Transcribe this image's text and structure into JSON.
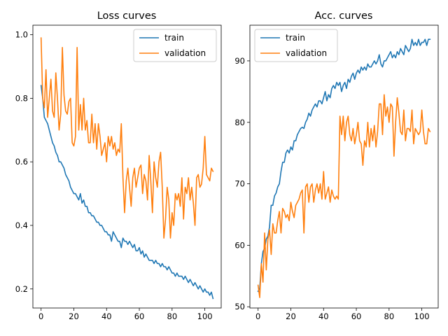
{
  "chart_data": [
    {
      "type": "line",
      "title": "Loss curves",
      "xlabel": "",
      "ylabel": "",
      "xlim": [
        -5,
        110
      ],
      "ylim": [
        0.14,
        1.03
      ],
      "xticks": [
        0,
        20,
        40,
        60,
        80,
        100
      ],
      "yticks": [
        0.2,
        0.4,
        0.6,
        0.8,
        1.0
      ],
      "xtick_labels": [
        "0",
        "20",
        "40",
        "60",
        "80",
        "100"
      ],
      "ytick_labels": [
        "0.2",
        "0.4",
        "0.6",
        "0.8",
        "1.0"
      ],
      "legend_position": "upper-right",
      "grid": false,
      "series": [
        {
          "name": "train",
          "color": "#1f77b4",
          "x": [
            0,
            1,
            2,
            3,
            4,
            5,
            6,
            7,
            8,
            9,
            10,
            11,
            12,
            13,
            14,
            15,
            16,
            17,
            18,
            19,
            20,
            21,
            22,
            23,
            24,
            25,
            26,
            27,
            28,
            29,
            30,
            31,
            32,
            33,
            34,
            35,
            36,
            37,
            38,
            39,
            40,
            41,
            42,
            43,
            44,
            45,
            46,
            47,
            48,
            49,
            50,
            51,
            52,
            53,
            54,
            55,
            56,
            57,
            58,
            59,
            60,
            61,
            62,
            63,
            64,
            65,
            66,
            67,
            68,
            69,
            70,
            71,
            72,
            73,
            74,
            75,
            76,
            77,
            78,
            79,
            80,
            81,
            82,
            83,
            84,
            85,
            86,
            87,
            88,
            89,
            90,
            91,
            92,
            93,
            94,
            95,
            96,
            97,
            98,
            99,
            100,
            101,
            102,
            103,
            104,
            105
          ],
          "y": [
            0.84,
            0.8,
            0.74,
            0.73,
            0.72,
            0.7,
            0.68,
            0.66,
            0.65,
            0.63,
            0.62,
            0.6,
            0.6,
            0.59,
            0.58,
            0.56,
            0.55,
            0.54,
            0.52,
            0.51,
            0.5,
            0.5,
            0.49,
            0.48,
            0.5,
            0.47,
            0.48,
            0.46,
            0.46,
            0.44,
            0.44,
            0.43,
            0.43,
            0.42,
            0.41,
            0.41,
            0.4,
            0.4,
            0.39,
            0.38,
            0.38,
            0.37,
            0.37,
            0.35,
            0.38,
            0.37,
            0.36,
            0.35,
            0.35,
            0.33,
            0.36,
            0.35,
            0.35,
            0.34,
            0.35,
            0.34,
            0.33,
            0.34,
            0.32,
            0.32,
            0.33,
            0.31,
            0.32,
            0.3,
            0.31,
            0.3,
            0.29,
            0.29,
            0.29,
            0.28,
            0.29,
            0.28,
            0.28,
            0.27,
            0.28,
            0.27,
            0.27,
            0.26,
            0.27,
            0.26,
            0.25,
            0.25,
            0.24,
            0.25,
            0.24,
            0.24,
            0.24,
            0.23,
            0.24,
            0.23,
            0.22,
            0.23,
            0.22,
            0.21,
            0.22,
            0.21,
            0.2,
            0.21,
            0.2,
            0.19,
            0.2,
            0.19,
            0.19,
            0.18,
            0.19,
            0.17
          ]
        },
        {
          "name": "validation",
          "color": "#ff7f0e",
          "x": [
            0,
            1,
            2,
            3,
            4,
            5,
            6,
            7,
            8,
            9,
            10,
            11,
            12,
            13,
            14,
            15,
            16,
            17,
            18,
            19,
            20,
            21,
            22,
            23,
            24,
            25,
            26,
            27,
            28,
            29,
            30,
            31,
            32,
            33,
            34,
            35,
            36,
            37,
            38,
            39,
            40,
            41,
            42,
            43,
            44,
            45,
            46,
            47,
            48,
            49,
            50,
            51,
            52,
            53,
            54,
            55,
            56,
            57,
            58,
            59,
            60,
            61,
            62,
            63,
            64,
            65,
            66,
            67,
            68,
            69,
            70,
            71,
            72,
            73,
            74,
            75,
            76,
            77,
            78,
            79,
            80,
            81,
            82,
            83,
            84,
            85,
            86,
            87,
            88,
            89,
            90,
            91,
            92,
            93,
            94,
            95,
            96,
            97,
            98,
            99,
            100,
            101,
            102,
            103,
            104,
            105
          ],
          "y": [
            0.99,
            0.8,
            0.77,
            0.89,
            0.74,
            0.8,
            0.86,
            0.76,
            0.74,
            0.88,
            0.8,
            0.7,
            0.75,
            0.96,
            0.81,
            0.76,
            0.75,
            0.79,
            0.8,
            0.66,
            0.65,
            0.68,
            0.96,
            0.7,
            0.78,
            0.7,
            0.8,
            0.7,
            0.73,
            0.66,
            0.66,
            0.75,
            0.66,
            0.72,
            0.64,
            0.72,
            0.68,
            0.62,
            0.64,
            0.66,
            0.6,
            0.68,
            0.65,
            0.68,
            0.64,
            0.66,
            0.62,
            0.64,
            0.63,
            0.72,
            0.55,
            0.44,
            0.54,
            0.58,
            0.52,
            0.46,
            0.55,
            0.58,
            0.52,
            0.55,
            0.58,
            0.59,
            0.5,
            0.56,
            0.54,
            0.48,
            0.62,
            0.54,
            0.44,
            0.6,
            0.55,
            0.52,
            0.6,
            0.63,
            0.52,
            0.36,
            0.42,
            0.52,
            0.48,
            0.36,
            0.44,
            0.4,
            0.5,
            0.48,
            0.5,
            0.46,
            0.55,
            0.42,
            0.52,
            0.5,
            0.55,
            0.48,
            0.52,
            0.47,
            0.4,
            0.55,
            0.56,
            0.52,
            0.53,
            0.58,
            0.68,
            0.56,
            0.55,
            0.54,
            0.58,
            0.57
          ]
        }
      ]
    },
    {
      "type": "line",
      "title": "Acc. curves",
      "xlabel": "",
      "ylabel": "",
      "xlim": [
        -5,
        110
      ],
      "ylim": [
        49.8,
        95.8
      ],
      "xticks": [
        0,
        20,
        40,
        60,
        80,
        100
      ],
      "yticks": [
        50,
        60,
        70,
        80,
        90
      ],
      "xtick_labels": [
        "0",
        "20",
        "40",
        "60",
        "80",
        "100"
      ],
      "ytick_labels": [
        "50",
        "60",
        "70",
        "80",
        "90"
      ],
      "legend_position": "upper-left",
      "grid": false,
      "series": [
        {
          "name": "train",
          "color": "#1f77b4",
          "x": [
            0,
            1,
            2,
            3,
            4,
            5,
            6,
            7,
            8,
            9,
            10,
            11,
            12,
            13,
            14,
            15,
            16,
            17,
            18,
            19,
            20,
            21,
            22,
            23,
            24,
            25,
            26,
            27,
            28,
            29,
            30,
            31,
            32,
            33,
            34,
            35,
            36,
            37,
            38,
            39,
            40,
            41,
            42,
            43,
            44,
            45,
            46,
            47,
            48,
            49,
            50,
            51,
            52,
            53,
            54,
            55,
            56,
            57,
            58,
            59,
            60,
            61,
            62,
            63,
            64,
            65,
            66,
            67,
            68,
            69,
            70,
            71,
            72,
            73,
            74,
            75,
            76,
            77,
            78,
            79,
            80,
            81,
            82,
            83,
            84,
            85,
            86,
            87,
            88,
            89,
            90,
            91,
            92,
            93,
            94,
            95,
            96,
            97,
            98,
            99,
            100,
            101,
            102,
            103,
            104,
            105
          ],
          "y": [
            52.5,
            53.0,
            57.0,
            59.0,
            59.5,
            61.0,
            61.5,
            63.0,
            66.5,
            66.5,
            68.0,
            68.5,
            69.5,
            70.0,
            72.0,
            73.5,
            73.5,
            75.0,
            75.5,
            75.0,
            76.0,
            75.5,
            77.0,
            77.0,
            78.0,
            78.5,
            79.0,
            79.2,
            79.0,
            80.0,
            80.5,
            81.5,
            81.0,
            82.0,
            82.5,
            83.0,
            82.5,
            83.5,
            83.5,
            83.0,
            84.0,
            85.0,
            83.5,
            84.5,
            84.0,
            85.5,
            86.0,
            85.5,
            86.5,
            86.0,
            86.5,
            85.0,
            86.0,
            86.5,
            85.5,
            87.0,
            86.5,
            87.5,
            88.0,
            87.0,
            88.0,
            88.5,
            88.0,
            89.0,
            88.5,
            89.0,
            88.5,
            89.5,
            89.0,
            89.0,
            89.5,
            90.0,
            89.5,
            90.0,
            91.0,
            89.5,
            89.0,
            90.0,
            90.0,
            90.5,
            91.0,
            91.5,
            90.5,
            91.0,
            90.5,
            91.5,
            91.0,
            92.0,
            91.5,
            91.0,
            92.5,
            92.0,
            91.5,
            92.0,
            93.5,
            92.5,
            93.0,
            92.5,
            93.5,
            92.5,
            93.0,
            93.0,
            93.5,
            92.5,
            93.5,
            93.5
          ]
        },
        {
          "name": "validation",
          "color": "#ff7f0e",
          "x": [
            0,
            1,
            2,
            3,
            4,
            5,
            6,
            7,
            8,
            9,
            10,
            11,
            12,
            13,
            14,
            15,
            16,
            17,
            18,
            19,
            20,
            21,
            22,
            23,
            24,
            25,
            26,
            27,
            28,
            29,
            30,
            31,
            32,
            33,
            34,
            35,
            36,
            37,
            38,
            39,
            40,
            41,
            42,
            43,
            44,
            45,
            46,
            47,
            48,
            49,
            50,
            51,
            52,
            53,
            54,
            55,
            56,
            57,
            58,
            59,
            60,
            61,
            62,
            63,
            64,
            65,
            66,
            67,
            68,
            69,
            70,
            71,
            72,
            73,
            74,
            75,
            76,
            77,
            78,
            79,
            80,
            81,
            82,
            83,
            84,
            85,
            86,
            87,
            88,
            89,
            90,
            91,
            92,
            93,
            94,
            95,
            96,
            97,
            98,
            99,
            100,
            101,
            102,
            103,
            104,
            105
          ],
          "y": [
            53.5,
            51.5,
            57.0,
            54.0,
            62.0,
            56.0,
            61.0,
            62.5,
            58.5,
            63.5,
            62.0,
            62.0,
            64.0,
            65.5,
            62.0,
            66.0,
            65.5,
            64.5,
            65.0,
            64.0,
            67.0,
            65.5,
            64.5,
            66.5,
            67.0,
            67.5,
            68.5,
            69.0,
            62.0,
            69.5,
            70.0,
            67.0,
            69.5,
            70.0,
            67.0,
            69.0,
            70.0,
            68.5,
            70.0,
            67.5,
            72.0,
            67.5,
            68.5,
            69.5,
            67.0,
            69.0,
            68.0,
            67.5,
            68.0,
            67.5,
            81.0,
            78.0,
            81.0,
            77.0,
            80.0,
            81.0,
            78.0,
            77.0,
            79.0,
            76.5,
            78.0,
            80.0,
            77.0,
            76.5,
            73.0,
            77.0,
            76.0,
            80.0,
            76.0,
            79.0,
            77.0,
            79.5,
            76.0,
            78.5,
            83.0,
            83.0,
            78.0,
            84.5,
            81.0,
            82.5,
            80.0,
            83.0,
            82.5,
            74.5,
            80.0,
            84.0,
            81.5,
            78.5,
            78.0,
            82.0,
            77.0,
            79.0,
            79.0,
            78.5,
            82.0,
            76.5,
            79.0,
            78.5,
            78.0,
            78.5,
            82.0,
            78.5,
            76.5,
            76.5,
            79.0,
            78.5
          ]
        }
      ]
    }
  ]
}
